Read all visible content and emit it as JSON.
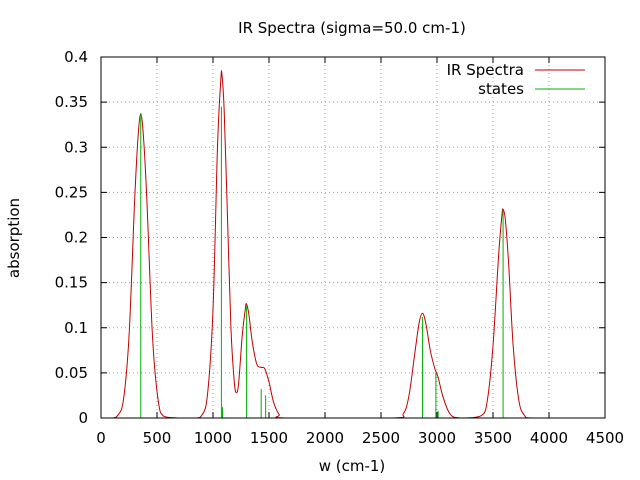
{
  "chart_data": {
    "type": "line",
    "title": "IR Spectra (sigma=50.0 cm-1)",
    "xlabel": "w (cm-1)",
    "ylabel": "absorption",
    "xlim": [
      0,
      4500
    ],
    "ylim": [
      0,
      0.4
    ],
    "x_ticks": [
      0,
      500,
      1000,
      1500,
      2000,
      2500,
      3000,
      3500,
      4000,
      4500
    ],
    "y_ticks": [
      0,
      0.05,
      0.1,
      0.15,
      0.2,
      0.25,
      0.3,
      0.35,
      0.4
    ],
    "x_tick_labels": [
      "0",
      "500",
      "1000",
      "1500",
      "2000",
      "2500",
      "3000",
      "3500",
      "4000",
      "4500"
    ],
    "y_tick_labels": [
      "0",
      "0.05",
      "0.1",
      "0.15",
      "0.2",
      "0.25",
      "0.3",
      "0.35",
      "0.4"
    ],
    "grid": true,
    "legend_position": "top-right",
    "sigma": 50,
    "series": [
      {
        "name": "IR Spectra",
        "kind": "line",
        "color": "#c00000"
      },
      {
        "name": "states",
        "kind": "impulses",
        "color": "#00b000",
        "x": [
          355,
          1075,
          1085,
          1300,
          1430,
          1470,
          2870,
          2990,
          3010,
          3590
        ],
        "y": [
          0.338,
          0.345,
          0.012,
          0.125,
          0.032,
          0.025,
          0.112,
          0.05,
          0.008,
          0.23
        ]
      }
    ],
    "spectrum_points": [
      [
        0,
        0
      ],
      [
        100,
        0
      ],
      [
        150,
        0.003
      ],
      [
        200,
        0.02
      ],
      [
        250,
        0.09
      ],
      [
        300,
        0.24
      ],
      [
        330,
        0.31
      ],
      [
        355,
        0.337
      ],
      [
        380,
        0.31
      ],
      [
        410,
        0.24
      ],
      [
        460,
        0.09
      ],
      [
        510,
        0.02
      ],
      [
        560,
        0.002
      ],
      [
        700,
        0
      ],
      [
        850,
        0
      ],
      [
        900,
        0.003
      ],
      [
        950,
        0.025
      ],
      [
        1000,
        0.12
      ],
      [
        1040,
        0.3
      ],
      [
        1070,
        0.375
      ],
      [
        1080,
        0.38
      ],
      [
        1100,
        0.34
      ],
      [
        1130,
        0.22
      ],
      [
        1160,
        0.1
      ],
      [
        1190,
        0.04
      ],
      [
        1210,
        0.028
      ],
      [
        1230,
        0.04
      ],
      [
        1260,
        0.09
      ],
      [
        1290,
        0.122
      ],
      [
        1300,
        0.126
      ],
      [
        1320,
        0.115
      ],
      [
        1350,
        0.085
      ],
      [
        1390,
        0.06
      ],
      [
        1430,
        0.056
      ],
      [
        1460,
        0.055
      ],
      [
        1500,
        0.04
      ],
      [
        1540,
        0.018
      ],
      [
        1590,
        0.004
      ],
      [
        1650,
        0
      ],
      [
        2600,
        0
      ],
      [
        2700,
        0.005
      ],
      [
        2750,
        0.025
      ],
      [
        2800,
        0.07
      ],
      [
        2840,
        0.105
      ],
      [
        2870,
        0.116
      ],
      [
        2900,
        0.105
      ],
      [
        2940,
        0.075
      ],
      [
        2980,
        0.055
      ],
      [
        3010,
        0.045
      ],
      [
        3050,
        0.025
      ],
      [
        3100,
        0.008
      ],
      [
        3150,
        0.001
      ],
      [
        3250,
        0
      ],
      [
        3400,
        0.003
      ],
      [
        3450,
        0.02
      ],
      [
        3500,
        0.08
      ],
      [
        3550,
        0.18
      ],
      [
        3580,
        0.225
      ],
      [
        3590,
        0.231
      ],
      [
        3610,
        0.22
      ],
      [
        3640,
        0.17
      ],
      [
        3680,
        0.08
      ],
      [
        3730,
        0.02
      ],
      [
        3780,
        0.003
      ],
      [
        3850,
        0
      ],
      [
        4200,
        0
      ]
    ]
  }
}
